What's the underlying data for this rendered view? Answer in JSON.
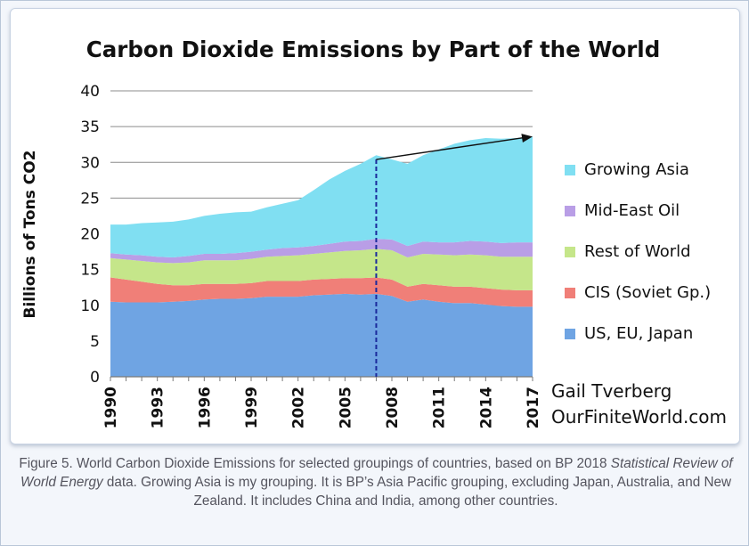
{
  "chart_data": {
    "type": "area",
    "stacked": true,
    "title": "Carbon Dioxide Emissions by Part of the World",
    "xlabel": "",
    "ylabel": "Billions of Tons CO2",
    "xlim": [
      1990,
      2017
    ],
    "ylim": [
      0,
      40
    ],
    "yticks": [
      0,
      5,
      10,
      15,
      20,
      25,
      30,
      35,
      40
    ],
    "xtick_labels": [
      "1990",
      "1993",
      "1996",
      "1999",
      "2002",
      "2005",
      "2008",
      "2011",
      "2014",
      "2017"
    ],
    "x": [
      1990,
      1991,
      1992,
      1993,
      1994,
      1995,
      1996,
      1997,
      1998,
      1999,
      2000,
      2001,
      2002,
      2003,
      2004,
      2005,
      2006,
      2007,
      2008,
      2009,
      2010,
      2011,
      2012,
      2013,
      2014,
      2015,
      2016,
      2017
    ],
    "series": [
      {
        "name": "US, EU, Japan",
        "color": "#6fa4e3",
        "values": [
          10.5,
          10.4,
          10.4,
          10.4,
          10.5,
          10.6,
          10.8,
          10.9,
          10.9,
          11.0,
          11.2,
          11.2,
          11.2,
          11.4,
          11.5,
          11.6,
          11.5,
          11.6,
          11.3,
          10.5,
          10.8,
          10.5,
          10.3,
          10.3,
          10.1,
          9.9,
          9.8,
          9.8
        ]
      },
      {
        "name": "CIS (Soviet Gp.)",
        "color": "#f07f78",
        "values": [
          3.4,
          3.2,
          2.9,
          2.6,
          2.3,
          2.2,
          2.2,
          2.1,
          2.1,
          2.1,
          2.2,
          2.2,
          2.2,
          2.2,
          2.2,
          2.2,
          2.3,
          2.3,
          2.3,
          2.1,
          2.2,
          2.3,
          2.3,
          2.3,
          2.3,
          2.3,
          2.3,
          2.3
        ]
      },
      {
        "name": "Rest of World",
        "color": "#c5e68a",
        "values": [
          2.7,
          2.8,
          2.9,
          3.0,
          3.1,
          3.2,
          3.3,
          3.3,
          3.3,
          3.4,
          3.4,
          3.5,
          3.6,
          3.6,
          3.7,
          3.8,
          3.9,
          4.0,
          4.1,
          4.1,
          4.2,
          4.3,
          4.4,
          4.5,
          4.6,
          4.6,
          4.7,
          4.7
        ]
      },
      {
        "name": "Mid-East Oil",
        "color": "#b99ee6",
        "values": [
          0.7,
          0.7,
          0.8,
          0.8,
          0.8,
          0.9,
          0.9,
          0.9,
          1.0,
          1.0,
          1.0,
          1.1,
          1.1,
          1.1,
          1.2,
          1.3,
          1.3,
          1.4,
          1.5,
          1.6,
          1.7,
          1.7,
          1.8,
          1.9,
          1.9,
          1.9,
          2.0,
          2.0
        ]
      },
      {
        "name": "Growing Asia",
        "color": "#80dff2",
        "values": [
          4.0,
          4.2,
          4.5,
          4.8,
          5.0,
          5.1,
          5.3,
          5.6,
          5.7,
          5.6,
          5.9,
          6.2,
          6.6,
          7.8,
          9.0,
          9.9,
          10.8,
          11.7,
          11.2,
          11.5,
          12.1,
          13.0,
          13.8,
          14.1,
          14.5,
          14.6,
          14.6,
          14.8
        ]
      }
    ],
    "legend": [
      "Growing Asia",
      "Mid-East Oil",
      "Rest of World",
      "CIS (Soviet Gp.)",
      "US, EU, Japan"
    ],
    "legend_position": "right",
    "grid": true,
    "annotations": {
      "vertical_line_year": 2007,
      "vertical_line_color": "#1a2a9c",
      "arrow_from": [
        2007,
        30.4
      ],
      "arrow_to": [
        2017,
        33.6
      ],
      "credit_line1": "Gail Tverberg",
      "credit_line2": "OurFiniteWorld.com"
    }
  },
  "caption": {
    "part1": "Figure 5. World Carbon Dioxide Emissions for selected groupings of countries, based on BP 2018 ",
    "italic": "Statistical Review of World Energy",
    "part2": " data. Growing Asia is my grouping. It is BP’s Asia Pacific grouping, excluding Japan, Australia, and New Zealand. It includes China and India, among other countries."
  }
}
